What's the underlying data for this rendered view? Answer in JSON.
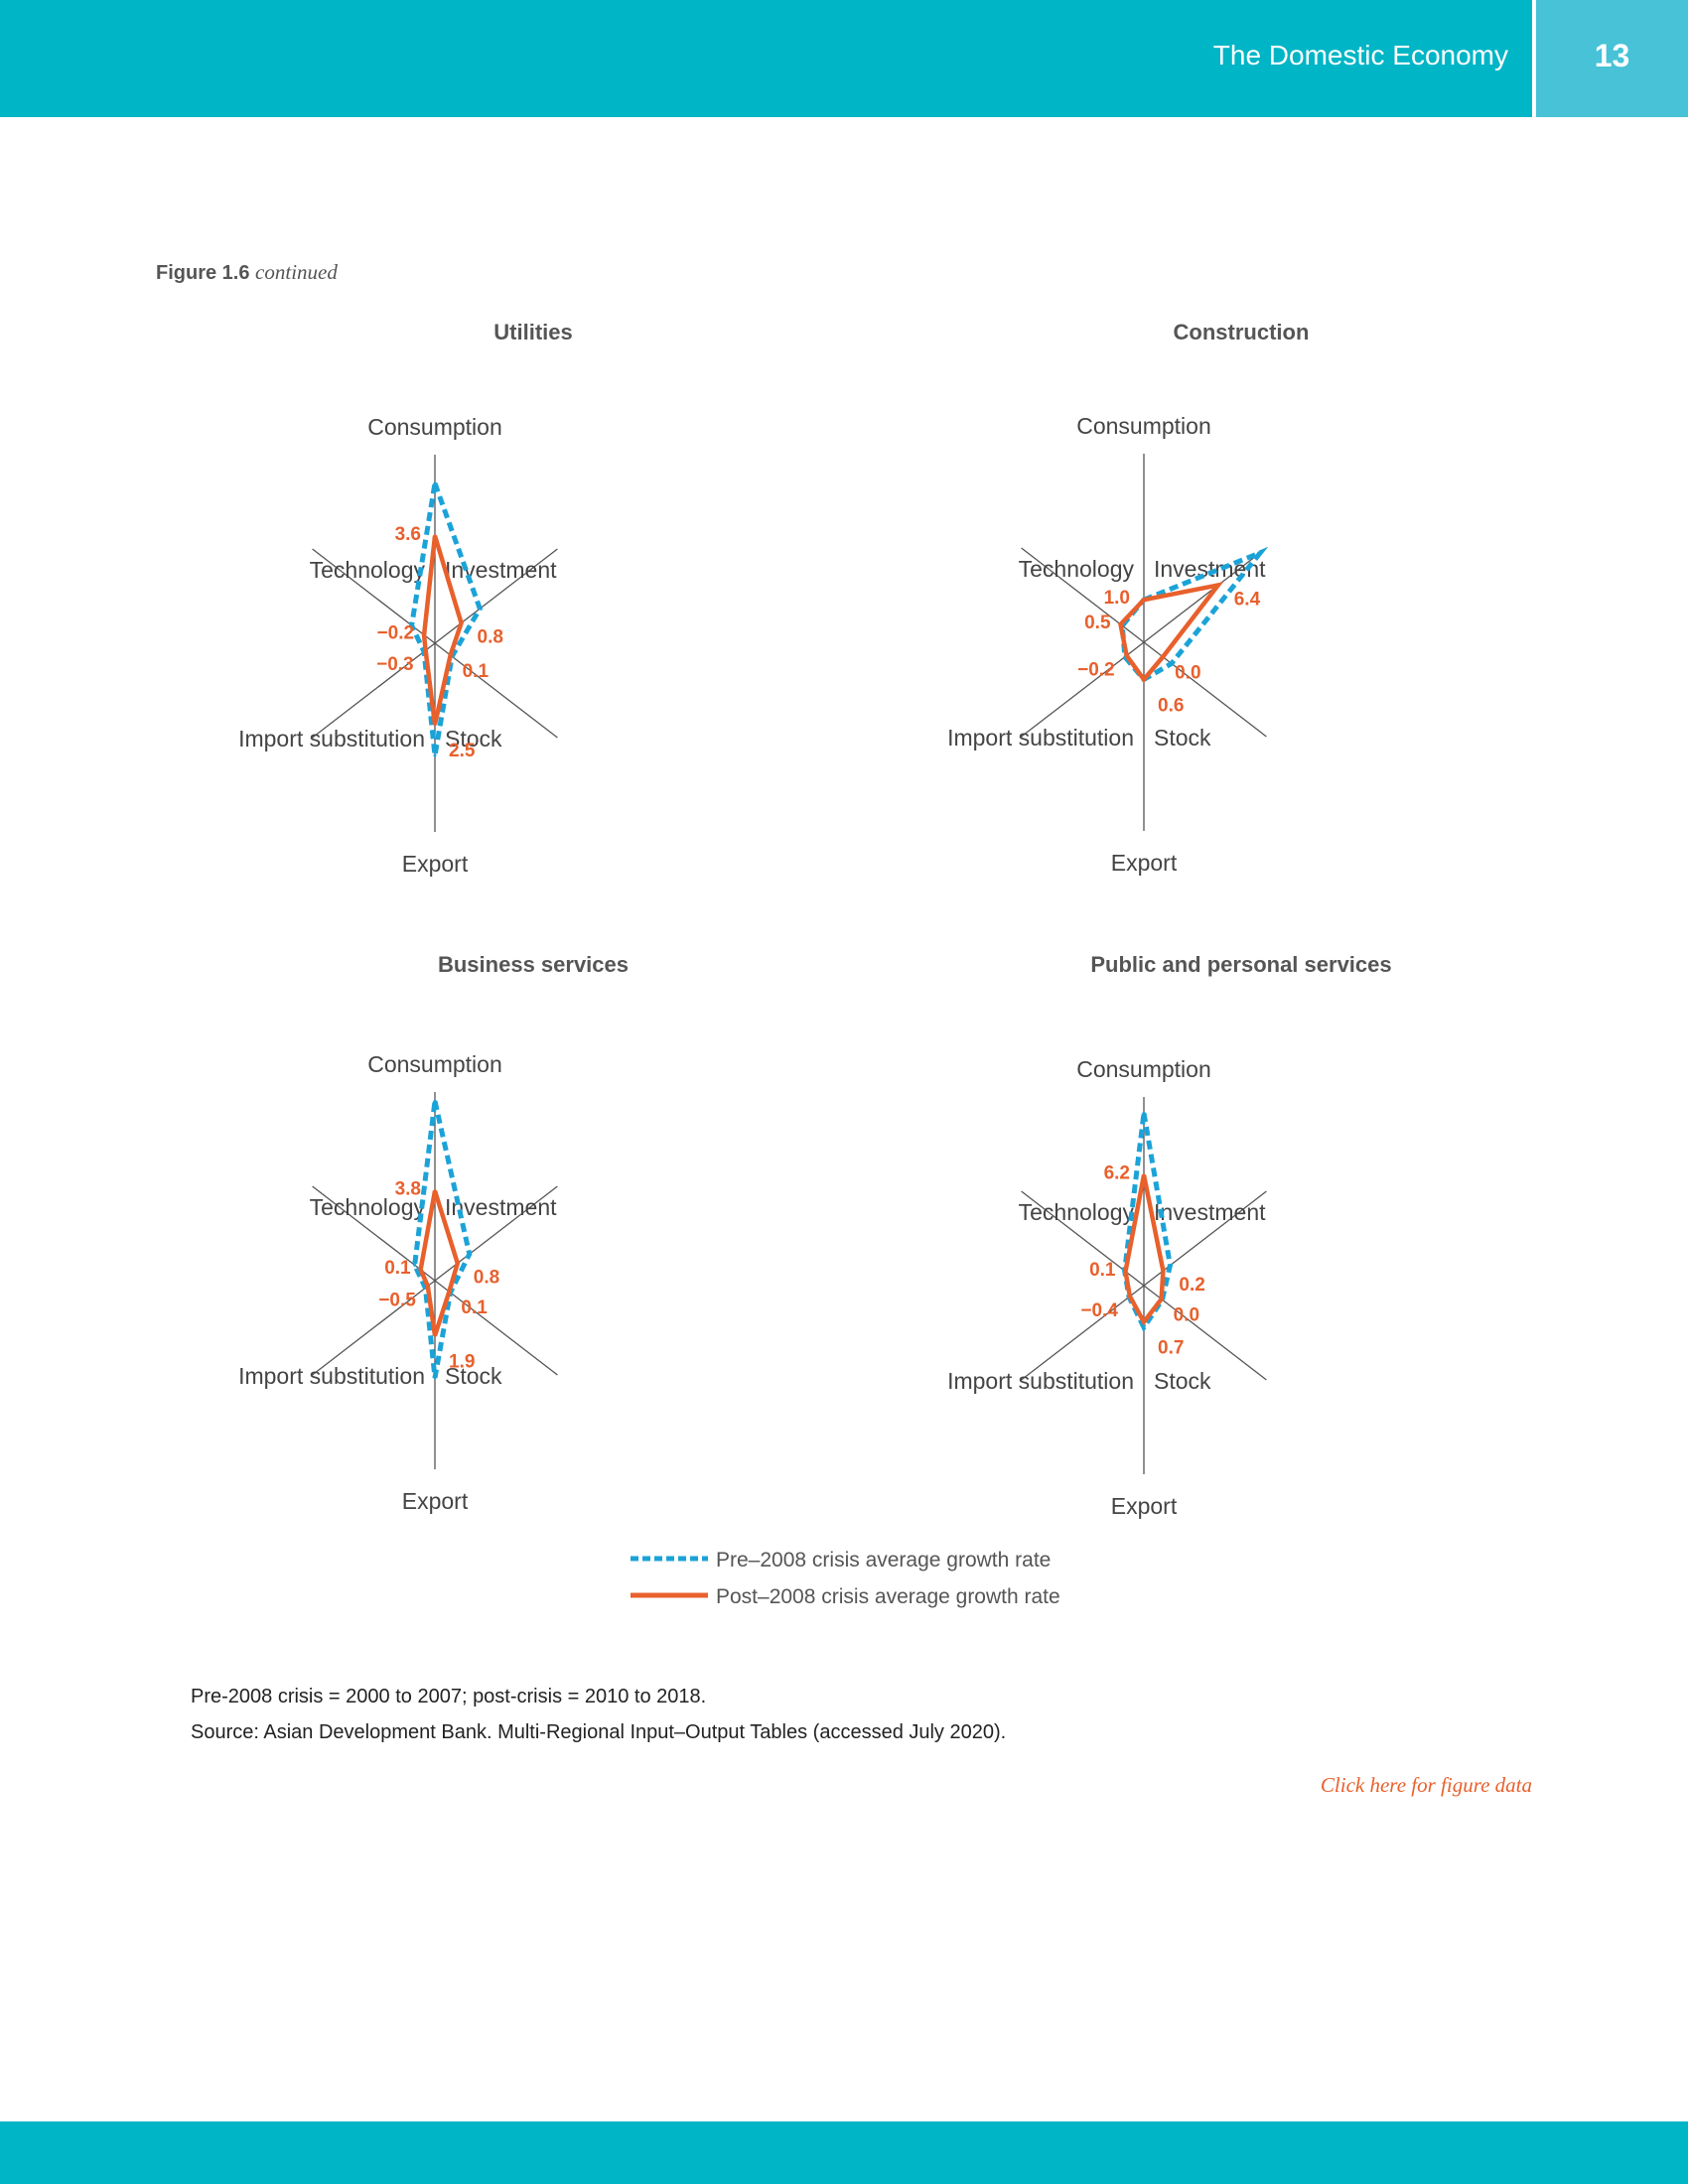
{
  "header": {
    "title": "The Domestic Economy",
    "page_number": "13"
  },
  "figure": {
    "label": "Figure 1.6",
    "suffix": "continued"
  },
  "colors": {
    "header": "#00B5C6",
    "page_box": "#47C2D7",
    "pre": "#1BA3D8",
    "post": "#E8602C",
    "axis": "#555555"
  },
  "legend": {
    "pre": "Pre–2008 crisis average growth rate",
    "post": "Post–2008 crisis average growth rate"
  },
  "chart_data": [
    {
      "type": "radar",
      "title": "Utilities",
      "axes": [
        "Consumption",
        "Investment",
        "Stock",
        "Export",
        "Import substitution",
        "Technology"
      ],
      "range": [
        -0.9,
        7
      ],
      "series": [
        {
          "name": "Pre–2008 crisis average growth rate",
          "style": "dashed",
          "values": [
            5.8,
            2.0,
            0.2,
            3.8,
            -0.2,
            0.6
          ]
        },
        {
          "name": "Post–2008 crisis average growth rate",
          "style": "solid",
          "values": [
            3.6,
            0.8,
            0.1,
            2.5,
            -0.3,
            -0.2
          ],
          "labels": [
            "3.6",
            "0.8",
            "0.1",
            "2.5",
            "−0.3",
            "−0.2"
          ]
        }
      ]
    },
    {
      "type": "radar",
      "title": "Construction",
      "axes": [
        "Consumption",
        "Investment",
        "Stock",
        "Export",
        "Import substitution",
        "Technology"
      ],
      "range": [
        -2.2,
        12
      ],
      "series": [
        {
          "name": "Pre–2008 crisis average growth rate",
          "style": "dashed",
          "values": [
            1.0,
            11.3,
            1.0,
            0.6,
            0.0,
            0.3
          ]
        },
        {
          "name": "Post–2008 crisis average growth rate",
          "style": "solid",
          "values": [
            1.0,
            6.4,
            0.0,
            0.6,
            -0.2,
            0.5
          ],
          "labels": [
            "1.0",
            "6.4",
            "0.0",
            "0.6",
            "−0.2",
            "0.5"
          ]
        }
      ]
    },
    {
      "type": "radar",
      "title": "Business services",
      "axes": [
        "Consumption",
        "Investment",
        "Stock",
        "Export",
        "Import substitution",
        "Technology"
      ],
      "range": [
        -1.1,
        9.2
      ],
      "series": [
        {
          "name": "Pre–2008 crisis average growth rate",
          "style": "dashed",
          "values": [
            8.7,
            1.8,
            0.2,
            4.2,
            -0.3,
            0.6
          ]
        },
        {
          "name": "Post–2008 crisis average growth rate",
          "style": "solid",
          "values": [
            3.8,
            0.8,
            0.1,
            1.9,
            -0.5,
            0.1
          ],
          "labels": [
            "3.8",
            "0.8",
            "0.1",
            "1.9",
            "−0.5",
            "0.1"
          ]
        }
      ]
    },
    {
      "type": "radar",
      "title": "Public and personal services",
      "axes": [
        "Consumption",
        "Investment",
        "Stock",
        "Export",
        "Import substitution",
        "Technology"
      ],
      "range": [
        -2,
        12
      ],
      "series": [
        {
          "name": "Pre–2008 crisis average growth rate",
          "style": "dashed",
          "values": [
            10.8,
            1.0,
            0.1,
            1.1,
            -0.3,
            0.2
          ]
        },
        {
          "name": "Post–2008 crisis average growth rate",
          "style": "solid",
          "values": [
            6.2,
            0.2,
            0.0,
            0.7,
            -0.4,
            0.1
          ],
          "labels": [
            "6.2",
            "0.2",
            "0.0",
            "0.7",
            "−0.4",
            "0.1"
          ]
        }
      ]
    }
  ],
  "notes": {
    "definition": "Pre-2008 crisis = 2000 to 2007; post-crisis = 2010 to 2018.",
    "source": "Source: Asian Development Bank. Multi-Regional Input–Output Tables (accessed July 2020).",
    "link": "Click here for figure data"
  }
}
